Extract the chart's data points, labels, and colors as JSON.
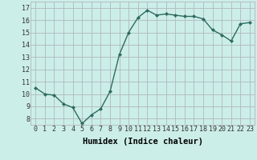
{
  "x": [
    0,
    1,
    2,
    3,
    4,
    5,
    6,
    7,
    8,
    9,
    10,
    11,
    12,
    13,
    14,
    15,
    16,
    17,
    18,
    19,
    20,
    21,
    22,
    23
  ],
  "y": [
    10.5,
    10.0,
    9.9,
    9.2,
    8.9,
    7.6,
    8.3,
    8.8,
    10.2,
    13.2,
    15.0,
    16.2,
    16.8,
    16.4,
    16.5,
    16.4,
    16.3,
    16.3,
    16.1,
    15.2,
    14.8,
    14.3,
    15.7,
    15.8
  ],
  "line_color": "#2e6b5e",
  "marker": "D",
  "marker_size": 2.0,
  "linewidth": 1.0,
  "xlabel": "Humidex (Indice chaleur)",
  "xlim": [
    -0.5,
    23.5
  ],
  "ylim": [
    7.5,
    17.5
  ],
  "yticks": [
    8,
    9,
    10,
    11,
    12,
    13,
    14,
    15,
    16,
    17
  ],
  "xticks": [
    0,
    1,
    2,
    3,
    4,
    5,
    6,
    7,
    8,
    9,
    10,
    11,
    12,
    13,
    14,
    15,
    16,
    17,
    18,
    19,
    20,
    21,
    22,
    23
  ],
  "background_color": "#cceee8",
  "grid_color": "#b0b8c0",
  "tick_label_fontsize": 6.0,
  "xlabel_fontsize": 7.5
}
